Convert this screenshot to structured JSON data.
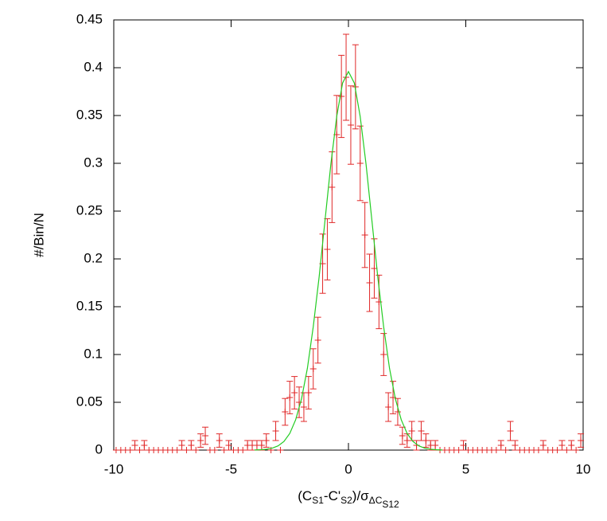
{
  "chart_data": {
    "type": "errorbar",
    "ylabel": "#/Bin/N",
    "xlabel": [
      {
        "text": "(C"
      },
      {
        "text": "S1",
        "sub": 1
      },
      {
        "text": "-C'"
      },
      {
        "text": "S2",
        "sub": 1
      },
      {
        "text": ")/σ"
      },
      {
        "text": "ΔC",
        "sub": 1
      },
      {
        "text": "S12",
        "sub": 2
      }
    ],
    "xlim": [
      -10,
      10
    ],
    "xticks": [
      -10,
      -5,
      0,
      5,
      10
    ],
    "ylim": [
      0,
      0.45
    ],
    "yticks": [
      0,
      0.05,
      0.1,
      0.15,
      0.2,
      0.25,
      0.3,
      0.35,
      0.4,
      0.45
    ],
    "grid": false,
    "series": [
      {
        "color": "#e02828",
        "x": [
          -9.9,
          -9.7,
          -9.5,
          -9.3,
          -9.1,
          -8.9,
          -8.7,
          -8.5,
          -8.3,
          -8.1,
          -7.9,
          -7.7,
          -7.5,
          -7.3,
          -7.1,
          -6.9,
          -6.7,
          -6.5,
          -6.3,
          -6.1,
          -5.9,
          -5.7,
          -5.5,
          -5.3,
          -5.1,
          -4.9,
          -4.7,
          -4.5,
          -4.3,
          -4.1,
          -3.9,
          -3.7,
          -3.5,
          -3.3,
          -3.1,
          -2.9,
          -2.7,
          -2.5,
          -2.3,
          -2.1,
          -1.9,
          -1.7,
          -1.5,
          -1.3,
          -1.1,
          -0.9,
          -0.7,
          -0.5,
          -0.3,
          -0.1,
          0.1,
          0.3,
          0.5,
          0.7,
          0.9,
          1.1,
          1.3,
          1.5,
          1.7,
          1.9,
          2.1,
          2.3,
          2.5,
          2.7,
          2.9,
          3.1,
          3.3,
          3.5,
          3.7,
          3.9,
          4.1,
          4.3,
          4.5,
          4.7,
          4.9,
          5.1,
          5.3,
          5.5,
          5.7,
          5.9,
          6.1,
          6.3,
          6.5,
          6.7,
          6.9,
          7.1,
          7.3,
          7.5,
          7.7,
          7.9,
          8.1,
          8.3,
          8.5,
          8.7,
          8.9,
          9.1,
          9.3,
          9.5,
          9.7,
          9.9
        ],
        "values": [
          0,
          0,
          0,
          0,
          0.005,
          0,
          0.005,
          0,
          0,
          0,
          0,
          0,
          0,
          0,
          0.005,
          0,
          0.005,
          0,
          0.01,
          0.015,
          0,
          0,
          0.01,
          0,
          0.005,
          0,
          0,
          0,
          0.005,
          0.005,
          0.005,
          0.005,
          0.01,
          0,
          0.02,
          0,
          0.04,
          0.055,
          0.06,
          0.05,
          0.045,
          0.06,
          0.085,
          0.115,
          0.195,
          0.21,
          0.275,
          0.33,
          0.37,
          0.39,
          0.34,
          0.38,
          0.3,
          0.225,
          0.175,
          0.19,
          0.155,
          0.1,
          0.045,
          0.055,
          0.04,
          0.015,
          0.01,
          0.02,
          0.005,
          0.02,
          0.01,
          0.005,
          0.005,
          0,
          0,
          0,
          0,
          0,
          0.005,
          0,
          0,
          0,
          0,
          0,
          0,
          0,
          0.005,
          0,
          0.02,
          0.005,
          0,
          0,
          0,
          0,
          0,
          0.005,
          0,
          0,
          0,
          0.005,
          0,
          0.005,
          0,
          0.01
        ],
        "errors": [
          0,
          0,
          0,
          0,
          0.005,
          0,
          0.005,
          0,
          0,
          0,
          0,
          0,
          0,
          0,
          0.005,
          0,
          0.005,
          0,
          0.007,
          0.009,
          0,
          0,
          0.007,
          0,
          0.005,
          0,
          0,
          0,
          0.005,
          0.005,
          0.005,
          0.005,
          0.007,
          0,
          0.01,
          0,
          0.014,
          0.017,
          0.017,
          0.016,
          0.015,
          0.017,
          0.021,
          0.024,
          0.031,
          0.032,
          0.037,
          0.041,
          0.043,
          0.045,
          0.041,
          0.044,
          0.039,
          0.034,
          0.03,
          0.031,
          0.028,
          0.022,
          0.015,
          0.017,
          0.014,
          0.009,
          0.007,
          0.01,
          0.005,
          0.01,
          0.007,
          0.005,
          0.005,
          0,
          0,
          0,
          0,
          0,
          0.005,
          0,
          0,
          0,
          0,
          0,
          0,
          0,
          0.005,
          0,
          0.01,
          0.005,
          0,
          0,
          0,
          0,
          0,
          0.005,
          0,
          0,
          0,
          0.005,
          0,
          0.005,
          0,
          0.007
        ]
      },
      {
        "type": "line",
        "color": "#22cc22",
        "x": [
          -4,
          -3.75,
          -3.5,
          -3.25,
          -3,
          -2.75,
          -2.5,
          -2.25,
          -2,
          -1.75,
          -1.5,
          -1.25,
          -1,
          -0.75,
          -0.5,
          -0.25,
          0,
          0.25,
          0.5,
          0.75,
          1,
          1.25,
          1.5,
          1.75,
          2,
          2.25,
          2.5,
          2.75,
          3,
          3.25,
          3.5,
          3.75,
          4
        ],
        "values": [
          0.0001,
          0.0004,
          0.0009,
          0.002,
          0.0044,
          0.009,
          0.0174,
          0.0317,
          0.0536,
          0.0855,
          0.129,
          0.181,
          0.24,
          0.299,
          0.349,
          0.384,
          0.396,
          0.384,
          0.349,
          0.299,
          0.24,
          0.181,
          0.129,
          0.0855,
          0.0536,
          0.0317,
          0.0174,
          0.009,
          0.0044,
          0.002,
          0.0009,
          0.0004,
          0.0001
        ]
      }
    ]
  }
}
